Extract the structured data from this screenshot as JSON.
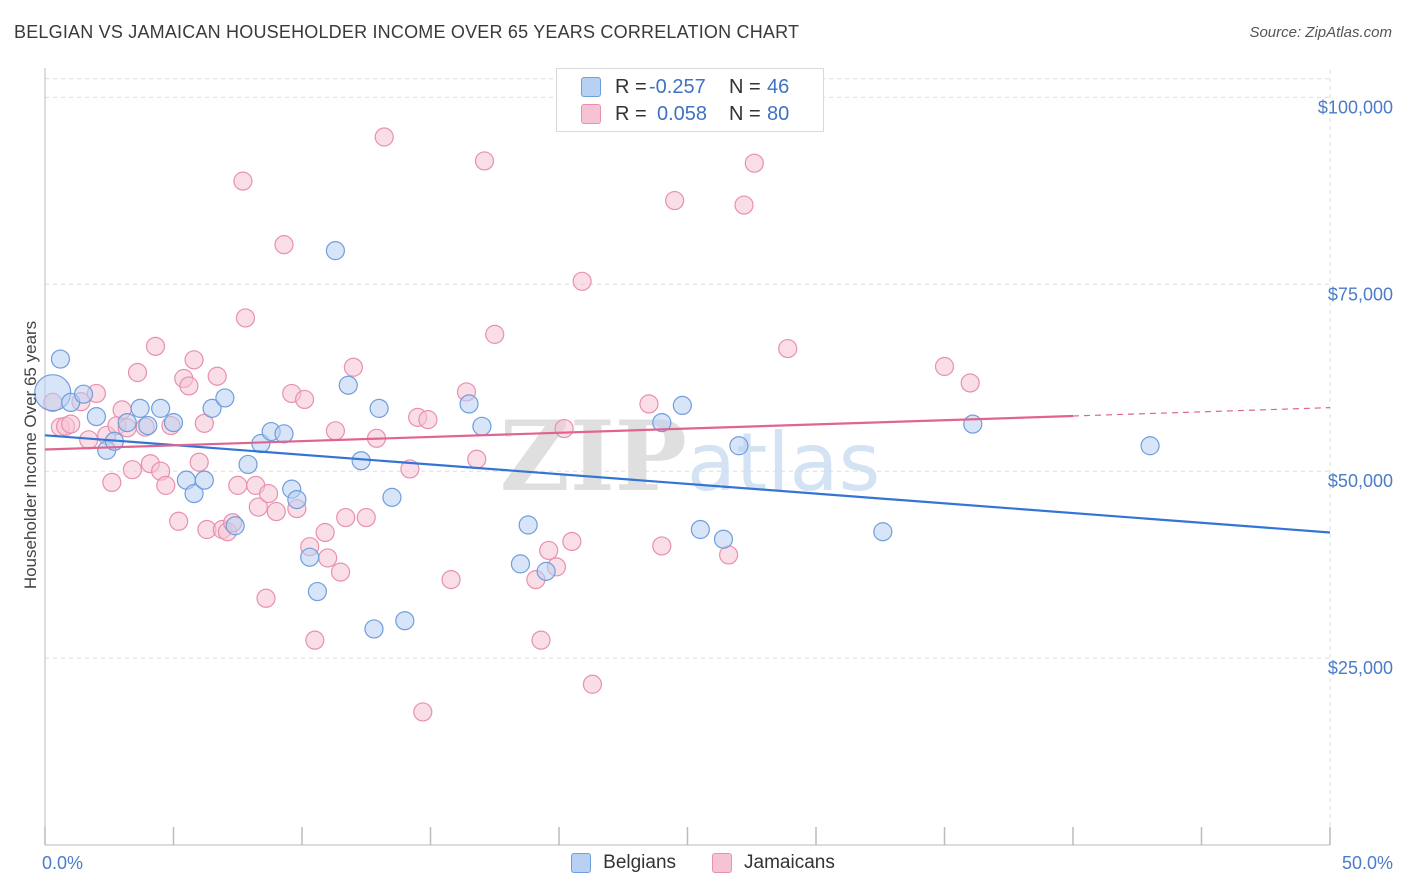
{
  "title": "BELGIAN VS JAMAICAN HOUSEHOLDER INCOME OVER 65 YEARS CORRELATION CHART",
  "source": "Source: ZipAtlas.com",
  "colors": {
    "belgians_fill": "#b8d0f2",
    "belgians_stroke": "#6f9edc",
    "belgians_line": "#3474d4",
    "jamaicans_fill": "#f6c3d4",
    "jamaicans_stroke": "#e890ae",
    "jamaicans_line": "#e0648f",
    "tick_text": "#4a7cc9",
    "grid": "#dddddd"
  },
  "legend": {
    "belgians": {
      "r_label": "R =",
      "r_value": "-0.257",
      "n_label": "N =",
      "n_value": "46"
    },
    "jamaicans": {
      "r_label": "R =",
      "r_value": "0.058",
      "n_label": "N =",
      "n_value": "80"
    }
  },
  "bottom_legend": {
    "belgians": "Belgians",
    "jamaicans": "Jamaicans"
  },
  "chart_data": {
    "type": "scatter",
    "ylabel": "Householder Income Over 65 years",
    "xlabel": "",
    "xlim": [
      0,
      50
    ],
    "ylim": [
      0,
      105000
    ],
    "x_tick_labels": [
      {
        "value": 0,
        "label": "0.0%"
      },
      {
        "value": 50,
        "label": "50.0%"
      }
    ],
    "y_ticks": [
      {
        "value": 25000,
        "label": "$25,000"
      },
      {
        "value": 50000,
        "label": "$50,000"
      },
      {
        "value": 75000,
        "label": "$75,000"
      },
      {
        "value": 100000,
        "label": "$100,000"
      }
    ],
    "watermark": "ZIPatlas",
    "series": [
      {
        "name": "Belgians",
        "points": [
          [
            0.3,
            60500
          ],
          [
            0.6,
            65000
          ],
          [
            1.0,
            59200
          ],
          [
            1.5,
            60300
          ],
          [
            2.0,
            57300
          ],
          [
            2.4,
            52800
          ],
          [
            2.7,
            54000
          ],
          [
            3.2,
            56500
          ],
          [
            3.7,
            58400
          ],
          [
            4.0,
            56100
          ],
          [
            4.5,
            58400
          ],
          [
            5.0,
            56500
          ],
          [
            5.5,
            48800
          ],
          [
            5.8,
            47000
          ],
          [
            6.2,
            48800
          ],
          [
            6.5,
            58400
          ],
          [
            7.0,
            59800
          ],
          [
            7.4,
            42700
          ],
          [
            7.9,
            50900
          ],
          [
            8.4,
            53700
          ],
          [
            8.8,
            55300
          ],
          [
            9.3,
            55000
          ],
          [
            9.6,
            47600
          ],
          [
            9.8,
            46200
          ],
          [
            10.3,
            38500
          ],
          [
            10.6,
            33900
          ],
          [
            11.3,
            79500
          ],
          [
            11.8,
            61500
          ],
          [
            12.3,
            51400
          ],
          [
            12.8,
            28900
          ],
          [
            13.0,
            58400
          ],
          [
            13.5,
            46500
          ],
          [
            14.0,
            30000
          ],
          [
            16.5,
            59000
          ],
          [
            17.0,
            56000
          ],
          [
            18.5,
            37600
          ],
          [
            18.8,
            42800
          ],
          [
            19.5,
            36600
          ],
          [
            24.0,
            56500
          ],
          [
            24.8,
            58800
          ],
          [
            25.5,
            42200
          ],
          [
            26.4,
            40900
          ],
          [
            27.0,
            53400
          ],
          [
            32.6,
            41900
          ],
          [
            36.1,
            56300
          ],
          [
            43.0,
            53400
          ]
        ]
      },
      {
        "name": "Jamaicans",
        "points": [
          [
            0.3,
            59200
          ],
          [
            0.6,
            55900
          ],
          [
            0.8,
            56000
          ],
          [
            1.0,
            56300
          ],
          [
            1.4,
            59300
          ],
          [
            1.7,
            54200
          ],
          [
            2.0,
            60400
          ],
          [
            2.4,
            54800
          ],
          [
            2.6,
            48500
          ],
          [
            2.8,
            56100
          ],
          [
            3.0,
            58200
          ],
          [
            3.2,
            55800
          ],
          [
            3.4,
            50200
          ],
          [
            3.6,
            63200
          ],
          [
            3.9,
            55900
          ],
          [
            4.1,
            51000
          ],
          [
            4.3,
            66700
          ],
          [
            4.5,
            50000
          ],
          [
            4.7,
            48100
          ],
          [
            4.9,
            56100
          ],
          [
            5.2,
            43300
          ],
          [
            5.4,
            62400
          ],
          [
            5.6,
            61400
          ],
          [
            5.8,
            64900
          ],
          [
            6.0,
            51200
          ],
          [
            6.2,
            56400
          ],
          [
            6.3,
            42200
          ],
          [
            6.7,
            62700
          ],
          [
            6.9,
            42200
          ],
          [
            7.1,
            41900
          ],
          [
            7.3,
            43100
          ],
          [
            7.5,
            48100
          ],
          [
            7.7,
            88800
          ],
          [
            7.8,
            70500
          ],
          [
            8.2,
            48100
          ],
          [
            8.3,
            45200
          ],
          [
            8.6,
            33000
          ],
          [
            8.7,
            47000
          ],
          [
            9.0,
            44600
          ],
          [
            9.3,
            80300
          ],
          [
            9.6,
            60400
          ],
          [
            9.8,
            45000
          ],
          [
            10.1,
            59600
          ],
          [
            10.3,
            39900
          ],
          [
            10.5,
            27400
          ],
          [
            10.9,
            41800
          ],
          [
            11.0,
            38400
          ],
          [
            11.3,
            55400
          ],
          [
            11.5,
            36500
          ],
          [
            11.7,
            43800
          ],
          [
            12.0,
            63900
          ],
          [
            12.5,
            43800
          ],
          [
            12.9,
            54400
          ],
          [
            13.2,
            94700
          ],
          [
            14.2,
            50300
          ],
          [
            14.5,
            57200
          ],
          [
            14.7,
            17800
          ],
          [
            14.9,
            56900
          ],
          [
            15.8,
            35500
          ],
          [
            16.4,
            60600
          ],
          [
            16.8,
            51600
          ],
          [
            17.1,
            91500
          ],
          [
            17.5,
            68300
          ],
          [
            19.1,
            35500
          ],
          [
            19.3,
            27400
          ],
          [
            19.6,
            39400
          ],
          [
            19.9,
            37200
          ],
          [
            20.2,
            55700
          ],
          [
            20.5,
            40600
          ],
          [
            20.9,
            75400
          ],
          [
            21.3,
            21500
          ],
          [
            23.5,
            59000
          ],
          [
            24.0,
            40000
          ],
          [
            24.5,
            86200
          ],
          [
            26.6,
            38800
          ],
          [
            27.2,
            85600
          ],
          [
            27.6,
            91200
          ],
          [
            28.9,
            66400
          ],
          [
            35.0,
            64000
          ],
          [
            36.0,
            61800
          ]
        ]
      }
    ],
    "trend_lines": [
      {
        "name": "Belgians",
        "x": [
          0,
          50
        ],
        "y": [
          54800,
          41800
        ],
        "dashed_from": null
      },
      {
        "name": "Jamaicans",
        "x": [
          0,
          50
        ],
        "y": [
          52900,
          58500
        ],
        "solid_until": 40
      }
    ]
  }
}
